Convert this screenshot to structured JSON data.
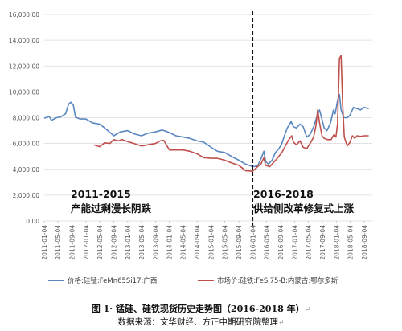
{
  "chart_data": {
    "type": "line",
    "y_ticks": [
      "0.00",
      "2,000.00",
      "4,000.00",
      "6,000.00",
      "8,000.00",
      "10,000.00",
      "12,000.00",
      "14,000.00",
      "16,000.00"
    ],
    "ylim": [
      0,
      16000
    ],
    "x_ticks": [
      "2011-01-04",
      "2011-05-04",
      "2011-09-04",
      "2012-01-04",
      "2012-05-04",
      "2012-09-04",
      "2013-01-04",
      "2013-05-04",
      "2013-09-04",
      "2014-01-04",
      "2014-05-04",
      "2014-09-04",
      "2015-01-04",
      "2015-05-04",
      "2015-09-04",
      "2016-01-04",
      "2016-05-04",
      "2016-09-04",
      "2017-01-04",
      "2017-05-04",
      "2017-09-04",
      "2018-01-04",
      "2018-05-04",
      "2018-09-04"
    ],
    "grid": true,
    "legend_position": "bottom",
    "divider_date": "2016-01-04",
    "annotations": [
      {
        "line1": "2011-2015",
        "line2": "产能过剩漫长阴跌"
      },
      {
        "line1": "2016-2018",
        "line2": "供给侧改革修复式上涨"
      }
    ],
    "series": [
      {
        "name": "价格:硅锰:FeMn65Si17:广西",
        "color": "#5a87c0",
        "points": [
          [
            "2011-01-04",
            7950
          ],
          [
            "2011-02-15",
            8100
          ],
          [
            "2011-03-10",
            7800
          ],
          [
            "2011-04-20",
            8000
          ],
          [
            "2011-05-25",
            8050
          ],
          [
            "2011-07-10",
            8300
          ],
          [
            "2011-08-05",
            9050
          ],
          [
            "2011-08-25",
            9200
          ],
          [
            "2011-09-15",
            9000
          ],
          [
            "2011-10-05",
            8050
          ],
          [
            "2011-11-15",
            7900
          ],
          [
            "2012-01-04",
            7900
          ],
          [
            "2012-03-01",
            7600
          ],
          [
            "2012-05-04",
            7500
          ],
          [
            "2012-07-01",
            7100
          ],
          [
            "2012-09-04",
            6600
          ],
          [
            "2012-11-01",
            6900
          ],
          [
            "2013-01-04",
            7000
          ],
          [
            "2013-03-01",
            6750
          ],
          [
            "2013-05-04",
            6600
          ],
          [
            "2013-07-01",
            6800
          ],
          [
            "2013-09-04",
            6900
          ],
          [
            "2013-11-01",
            7050
          ],
          [
            "2014-01-04",
            6850
          ],
          [
            "2014-03-01",
            6600
          ],
          [
            "2014-05-04",
            6500
          ],
          [
            "2014-07-01",
            6400
          ],
          [
            "2014-09-04",
            6200
          ],
          [
            "2014-11-01",
            6100
          ],
          [
            "2015-01-04",
            5700
          ],
          [
            "2015-03-01",
            5400
          ],
          [
            "2015-05-04",
            5300
          ],
          [
            "2015-07-01",
            5000
          ],
          [
            "2015-09-04",
            4700
          ],
          [
            "2015-11-01",
            4400
          ],
          [
            "2016-01-04",
            4200
          ],
          [
            "2016-02-15",
            4250
          ],
          [
            "2016-03-15",
            4800
          ],
          [
            "2016-04-10",
            5400
          ],
          [
            "2016-04-25",
            4600
          ],
          [
            "2016-05-20",
            4400
          ],
          [
            "2016-06-20",
            4700
          ],
          [
            "2016-07-20",
            5300
          ],
          [
            "2016-08-20",
            5600
          ],
          [
            "2016-09-15",
            6000
          ],
          [
            "2016-10-15",
            6800
          ],
          [
            "2016-11-01",
            7200
          ],
          [
            "2016-11-15",
            7400
          ],
          [
            "2016-12-05",
            7700
          ],
          [
            "2016-12-25",
            7300
          ],
          [
            "2017-01-20",
            7200
          ],
          [
            "2017-02-20",
            7500
          ],
          [
            "2017-03-20",
            7300
          ],
          [
            "2017-04-20",
            6500
          ],
          [
            "2017-05-20",
            6700
          ],
          [
            "2017-06-20",
            7300
          ],
          [
            "2017-07-15",
            8000
          ],
          [
            "2017-08-10",
            8600
          ],
          [
            "2017-08-25",
            8100
          ],
          [
            "2017-09-20",
            7200
          ],
          [
            "2017-10-15",
            7000
          ],
          [
            "2017-11-15",
            7600
          ],
          [
            "2017-12-10",
            8600
          ],
          [
            "2017-12-25",
            8300
          ],
          [
            "2018-01-15",
            9300
          ],
          [
            "2018-02-01",
            9800
          ],
          [
            "2018-02-15",
            8600
          ],
          [
            "2018-03-10",
            8000
          ],
          [
            "2018-04-10",
            8000
          ],
          [
            "2018-05-04",
            8200
          ],
          [
            "2018-06-04",
            8800
          ],
          [
            "2018-07-04",
            8700
          ],
          [
            "2018-08-04",
            8600
          ],
          [
            "2018-09-04",
            8800
          ],
          [
            "2018-10-15",
            8700
          ]
        ]
      },
      {
        "name": "市场价:硅铁:FeSi75-B:内蒙古:鄂尔多斯",
        "color": "#c0504d",
        "points": [
          [
            "2012-03-15",
            5900
          ],
          [
            "2012-05-04",
            5750
          ],
          [
            "2012-06-15",
            6050
          ],
          [
            "2012-08-01",
            6000
          ],
          [
            "2012-09-04",
            6300
          ],
          [
            "2012-10-15",
            6200
          ],
          [
            "2012-11-15",
            6300
          ],
          [
            "2013-01-04",
            6150
          ],
          [
            "2013-03-01",
            6000
          ],
          [
            "2013-05-04",
            5800
          ],
          [
            "2013-07-01",
            5900
          ],
          [
            "2013-09-04",
            6000
          ],
          [
            "2013-10-15",
            6200
          ],
          [
            "2013-11-15",
            6250
          ],
          [
            "2014-01-04",
            5500
          ],
          [
            "2014-03-01",
            5500
          ],
          [
            "2014-05-04",
            5500
          ],
          [
            "2014-07-01",
            5400
          ],
          [
            "2014-09-04",
            5200
          ],
          [
            "2014-11-01",
            4900
          ],
          [
            "2015-01-04",
            4850
          ],
          [
            "2015-03-01",
            4850
          ],
          [
            "2015-05-04",
            4700
          ],
          [
            "2015-07-01",
            4500
          ],
          [
            "2015-09-04",
            4300
          ],
          [
            "2015-11-01",
            3900
          ],
          [
            "2016-01-04",
            3850
          ],
          [
            "2016-02-15",
            4200
          ],
          [
            "2016-03-15",
            4400
          ],
          [
            "2016-04-10",
            4900
          ],
          [
            "2016-04-25",
            4300
          ],
          [
            "2016-06-01",
            4200
          ],
          [
            "2016-07-01",
            4500
          ],
          [
            "2016-08-01",
            4800
          ],
          [
            "2016-09-15",
            5300
          ],
          [
            "2016-10-15",
            5800
          ],
          [
            "2016-11-15",
            6300
          ],
          [
            "2016-12-10",
            6600
          ],
          [
            "2016-12-25",
            6100
          ],
          [
            "2017-01-20",
            5900
          ],
          [
            "2017-02-20",
            6200
          ],
          [
            "2017-03-20",
            5700
          ],
          [
            "2017-04-20",
            5600
          ],
          [
            "2017-05-20",
            6000
          ],
          [
            "2017-06-20",
            6500
          ],
          [
            "2017-07-10",
            7400
          ],
          [
            "2017-07-25",
            8600
          ],
          [
            "2017-08-10",
            7600
          ],
          [
            "2017-09-01",
            6600
          ],
          [
            "2017-09-20",
            6400
          ],
          [
            "2017-10-20",
            6300
          ],
          [
            "2017-11-20",
            6300
          ],
          [
            "2017-12-15",
            6700
          ],
          [
            "2018-01-01",
            6500
          ],
          [
            "2018-01-15",
            7500
          ],
          [
            "2018-02-01",
            12600
          ],
          [
            "2018-02-15",
            12800
          ],
          [
            "2018-03-01",
            9000
          ],
          [
            "2018-03-15",
            6500
          ],
          [
            "2018-04-10",
            5800
          ],
          [
            "2018-05-04",
            6100
          ],
          [
            "2018-05-25",
            6600
          ],
          [
            "2018-06-15",
            6400
          ],
          [
            "2018-07-04",
            6600
          ],
          [
            "2018-08-04",
            6550
          ],
          [
            "2018-09-04",
            6600
          ],
          [
            "2018-10-15",
            6600
          ]
        ]
      }
    ]
  },
  "caption": {
    "title": "图 1· 锰硅、硅铁现货历史走势图（2016-2018 年）",
    "title_mark": "↵",
    "source": "数据来源：文华财经、方正中期研究院整理",
    "source_mark": "↵"
  }
}
